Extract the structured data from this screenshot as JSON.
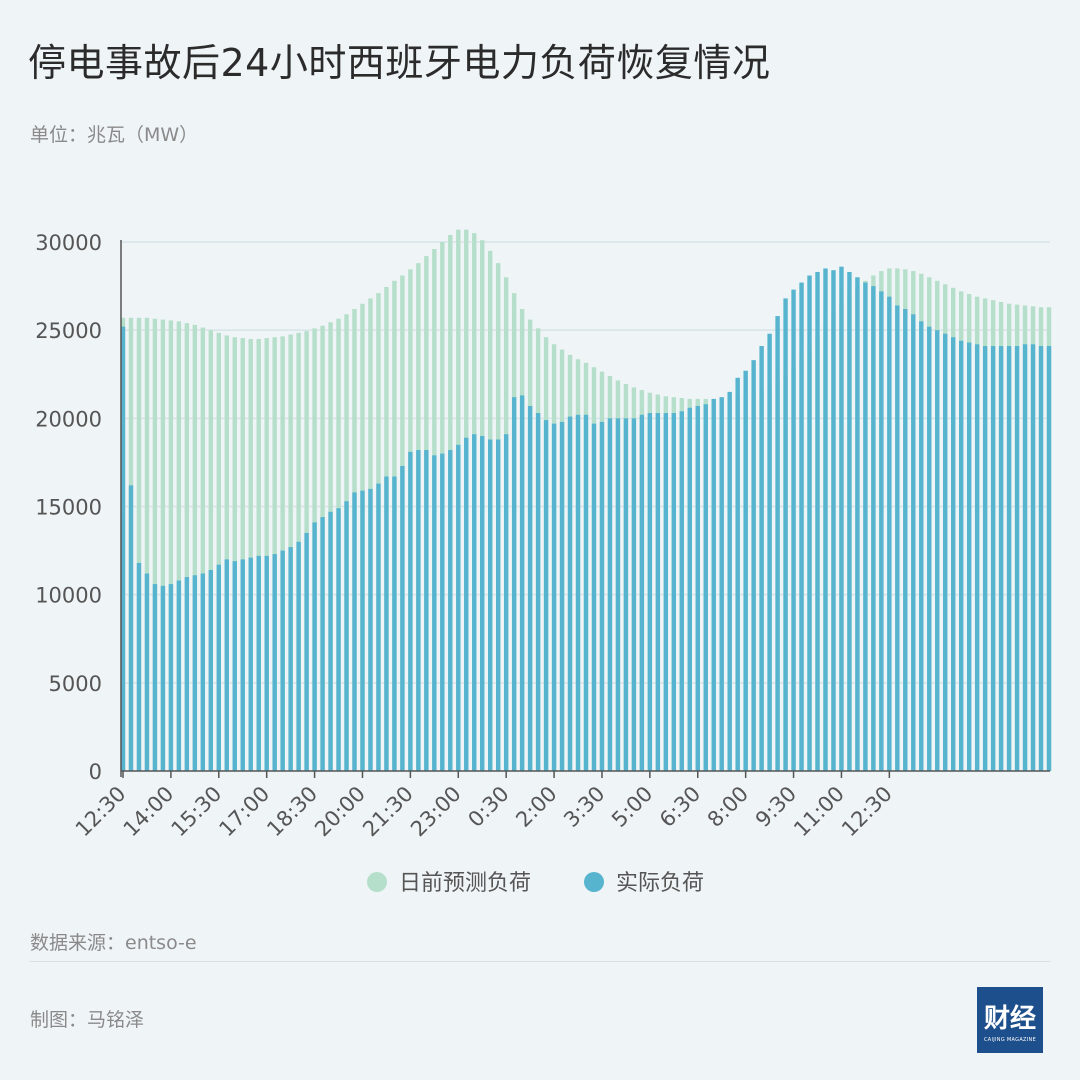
{
  "title": "停电事故后24小时西班牙电力负荷恢复情况",
  "unit": "单位：兆瓦（MW）",
  "source": "数据来源：entso-e",
  "credit": "制图：马铭泽",
  "logo": {
    "text": "财经",
    "sub": "CAIJING MAGAZINE"
  },
  "colors": {
    "forecast": "#b5dfca",
    "actual": "#56b4cf",
    "grid": "#d6e4e8",
    "axis": "#555555"
  },
  "chart_data": {
    "type": "bar",
    "xlabel": "",
    "ylabel": "",
    "ylim": [
      0,
      30000
    ],
    "yticks": [
      "0",
      "5000",
      "10000",
      "15000",
      "20000",
      "25000",
      "30000"
    ],
    "xticks": [
      "12:30",
      "14:00",
      "15:30",
      "17:00",
      "18:30",
      "20:00",
      "21:30",
      "23:00",
      "0:30",
      "2:00",
      "3:30",
      "5:00",
      "6:30",
      "8:00",
      "9:30",
      "11:00",
      "12:30"
    ],
    "interval_minutes": 15,
    "grid": true,
    "legend_position": "bottom-center",
    "series": [
      {
        "name": "日前预测负荷",
        "values": [
          25700,
          25700,
          25700,
          25700,
          25650,
          25600,
          25550,
          25500,
          25400,
          25300,
          25150,
          25000,
          24850,
          24700,
          24600,
          24550,
          24500,
          24500,
          24550,
          24600,
          24650,
          24750,
          24850,
          24950,
          25100,
          25250,
          25450,
          25650,
          25900,
          26200,
          26500,
          26800,
          27100,
          27450,
          27800,
          28100,
          28450,
          28800,
          29200,
          29600,
          30000,
          30400,
          30700,
          30700,
          30500,
          30100,
          29500,
          28800,
          28000,
          27100,
          26200,
          25600,
          25100,
          24600,
          24200,
          23900,
          23600,
          23350,
          23150,
          22900,
          22650,
          22400,
          22150,
          21950,
          21750,
          21600,
          21450,
          21350,
          21250,
          21200,
          21150,
          21100,
          21100,
          21100,
          21100,
          21150,
          21200,
          21250,
          21300,
          21400,
          21550,
          21800,
          22100,
          22500,
          22900,
          23400,
          24000,
          24700,
          25300,
          25900,
          26500,
          27000,
          27450,
          27800,
          28100,
          28350,
          28500,
          28500,
          28450,
          28350,
          28200,
          28000,
          27800,
          27600,
          27400,
          27200,
          27050,
          26900,
          26800,
          26700,
          26600,
          26500,
          26450,
          26400,
          26350,
          26300,
          26300
        ]
      },
      {
        "name": "实际负荷",
        "values": [
          25200,
          16200,
          11800,
          11200,
          10600,
          10500,
          10600,
          10800,
          11000,
          11100,
          11200,
          11400,
          11700,
          12000,
          11900,
          12000,
          12100,
          12200,
          12200,
          12300,
          12500,
          12700,
          13000,
          13500,
          14100,
          14400,
          14700,
          14900,
          15300,
          15800,
          15900,
          16000,
          16300,
          16700,
          16700,
          17300,
          18100,
          18200,
          18200,
          17900,
          18000,
          18200,
          18500,
          18900,
          19100,
          19000,
          18800,
          18800,
          19100,
          21200,
          21300,
          20700,
          20300,
          19900,
          19700,
          19800,
          20100,
          20200,
          20200,
          19700,
          19800,
          20000,
          20000,
          20000,
          20000,
          20200,
          20300,
          20300,
          20300,
          20300,
          20400,
          20600,
          20700,
          20800,
          21100,
          21200,
          21500,
          22300,
          22700,
          23300,
          24100,
          24800,
          25800,
          26800,
          27300,
          27700,
          28100,
          28300,
          28500,
          28400,
          28600,
          28300,
          28000,
          27700,
          27500,
          27200,
          26900,
          26400,
          26200,
          25900,
          25500,
          25200,
          25000,
          24800,
          24600,
          24400,
          24300,
          24200,
          24100,
          24100,
          24100,
          24100,
          24100,
          24200,
          24200,
          24100,
          24100
        ]
      }
    ]
  }
}
